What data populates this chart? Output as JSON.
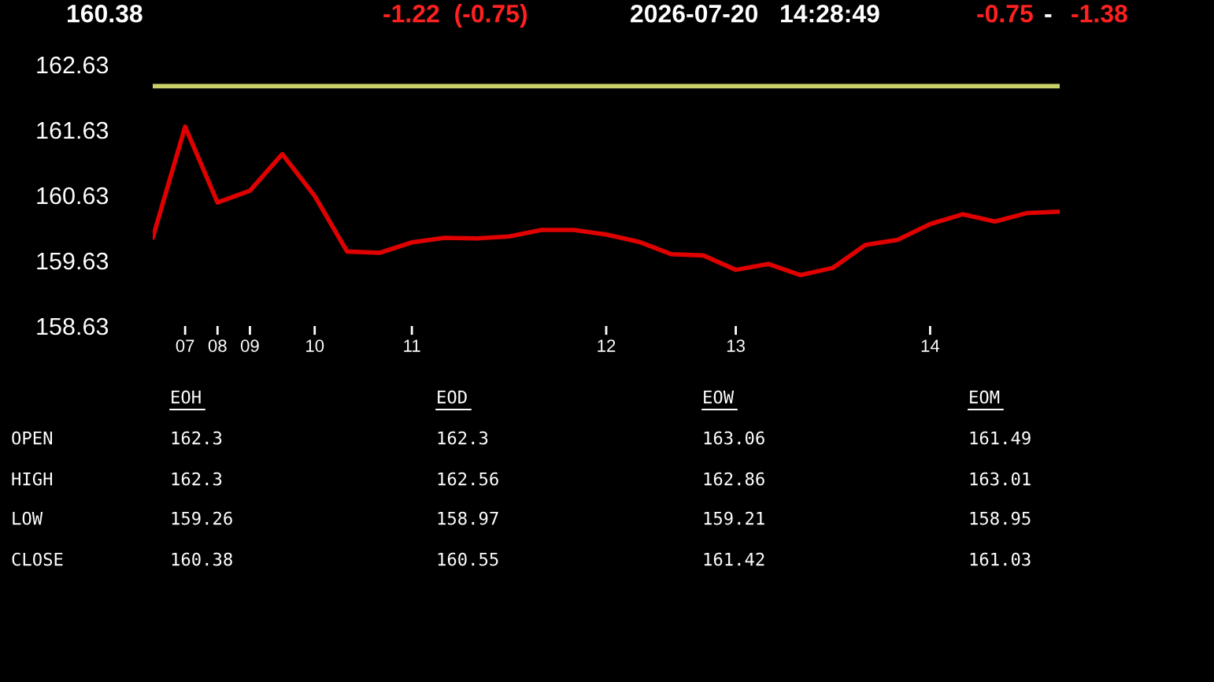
{
  "chart_data": {
    "type": "line",
    "categories": [
      null,
      "07",
      "08",
      "09",
      null,
      "10",
      null,
      null,
      "11",
      null,
      null,
      null,
      null,
      null,
      "12",
      null,
      null,
      null,
      "13",
      null,
      null,
      null,
      null,
      null,
      "14",
      null,
      null,
      null,
      null
    ],
    "series": [
      {
        "color": "#e00000",
        "values": [
          159.98,
          161.68,
          160.52,
          160.7,
          161.26,
          160.62,
          159.77,
          159.75,
          159.91,
          159.98,
          159.97,
          160.0,
          160.1,
          160.1,
          160.03,
          159.92,
          159.73,
          159.71,
          159.49,
          159.58,
          159.41,
          159.52,
          159.87,
          159.95,
          160.19,
          160.34,
          160.23,
          160.36,
          160.38
        ]
      }
    ],
    "ylim": [
      158.63,
      162.63
    ],
    "yticks": [
      158.63,
      159.63,
      160.63,
      161.63,
      162.63
    ],
    "ref_lines": [
      {
        "axis": "y",
        "value": 162.3,
        "color": "#c8d06a"
      }
    ],
    "grid": false,
    "legend": false,
    "marker": "none",
    "line_style": "solid",
    "annotations": [
      "160.38",
      "-1.22  (-0.75)",
      "2026-07-20   14:28:49",
      "-0.75",
      "-",
      "-1.38",
      "EOH",
      "EOD",
      "EOW",
      "EOM",
      "OPEN",
      "HIGH",
      "LOW",
      "CLOSE",
      "162.3",
      "162.3",
      "163.06",
      "161.49",
      "162.3",
      "162.56",
      "162.86",
      "163.01",
      "159.26",
      "158.97",
      "159.21",
      "158.95",
      "160.38",
      "160.55",
      "161.42",
      "161.03"
    ]
  }
}
